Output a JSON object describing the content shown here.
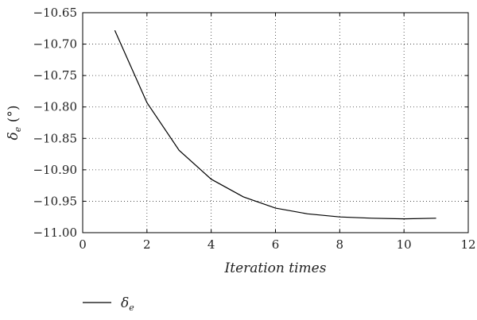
{
  "chart_data": {
    "type": "line",
    "xlabel": "Iteration times",
    "ylabel_symbol": "δ",
    "ylabel_subscript": "e",
    "ylabel_unit": " (°)",
    "xlim": [
      0,
      12
    ],
    "ylim": [
      -11.0,
      -10.65
    ],
    "xticks": [
      0,
      2,
      4,
      6,
      8,
      10,
      12
    ],
    "yticks": [
      -10.65,
      -10.7,
      -10.75,
      -10.8,
      -10.85,
      -10.9,
      -10.95,
      -11.0
    ],
    "xtick_labels": [
      "0",
      "2",
      "4",
      "6",
      "8",
      "10",
      "12"
    ],
    "ytick_labels": [
      "−10.65",
      "−10.70",
      "−10.75",
      "−10.80",
      "−10.85",
      "−10.90",
      "−10.95",
      "−11.00"
    ],
    "grid": true,
    "legend_position": "bottom-left",
    "series": [
      {
        "name_symbol": "δ",
        "name_subscript": "e",
        "color": "#000000",
        "x": [
          1,
          2,
          3,
          4,
          5,
          6,
          7,
          8,
          9,
          10,
          11
        ],
        "y": [
          -10.678,
          -10.793,
          -10.869,
          -10.915,
          -10.943,
          -10.961,
          -10.97,
          -10.975,
          -10.977,
          -10.978,
          -10.977
        ]
      }
    ]
  }
}
